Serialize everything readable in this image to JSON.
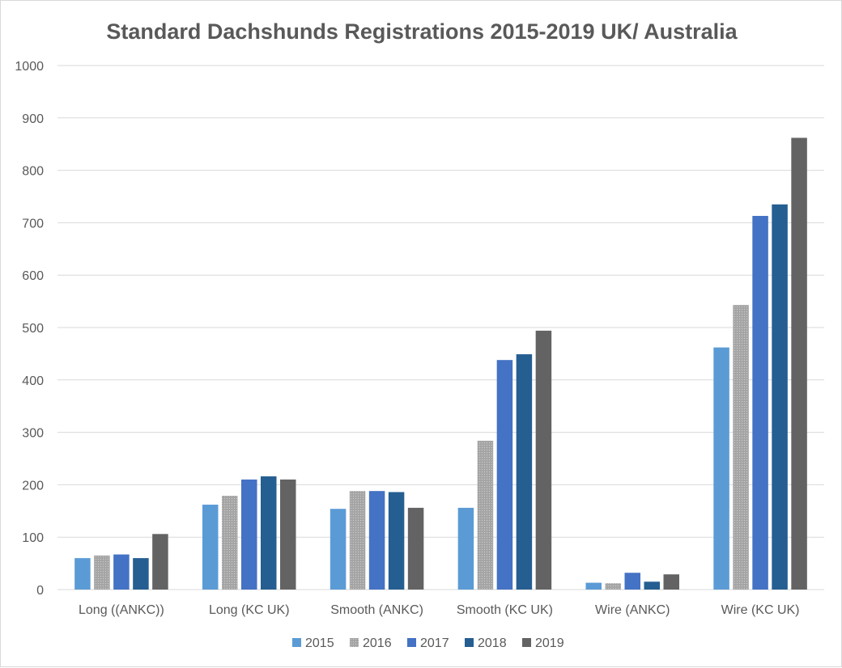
{
  "chart_data": {
    "type": "bar",
    "title": "Standard Dachshunds Registrations 2015-2019 UK/ Australia",
    "xlabel": "",
    "ylabel": "",
    "ylim": [
      0,
      1000
    ],
    "yticks": [
      0,
      100,
      200,
      300,
      400,
      500,
      600,
      700,
      800,
      900,
      1000
    ],
    "grid": true,
    "legend_position": "bottom",
    "categories": [
      "Long ((ANKC))",
      "Long (KC UK)",
      "Smooth (ANKC)",
      "Smooth (KC UK)",
      "Wire (ANKC)",
      "Wire (KC UK)"
    ],
    "series": [
      {
        "name": "2015",
        "color": "#5b9bd5",
        "pattern": "solid",
        "values": [
          60,
          162,
          154,
          156,
          13,
          462
        ]
      },
      {
        "name": "2016",
        "color": "#a5a5a5",
        "pattern": "dots",
        "values": [
          65,
          179,
          188,
          284,
          12,
          543
        ]
      },
      {
        "name": "2017",
        "color": "#4472c4",
        "pattern": "solid",
        "values": [
          67,
          210,
          188,
          438,
          32,
          713
        ]
      },
      {
        "name": "2018",
        "color": "#255e91",
        "pattern": "solid",
        "values": [
          60,
          216,
          186,
          449,
          15,
          735
        ]
      },
      {
        "name": "2019",
        "color": "#636363",
        "pattern": "solid",
        "values": [
          106,
          210,
          156,
          494,
          29,
          862
        ]
      }
    ]
  }
}
